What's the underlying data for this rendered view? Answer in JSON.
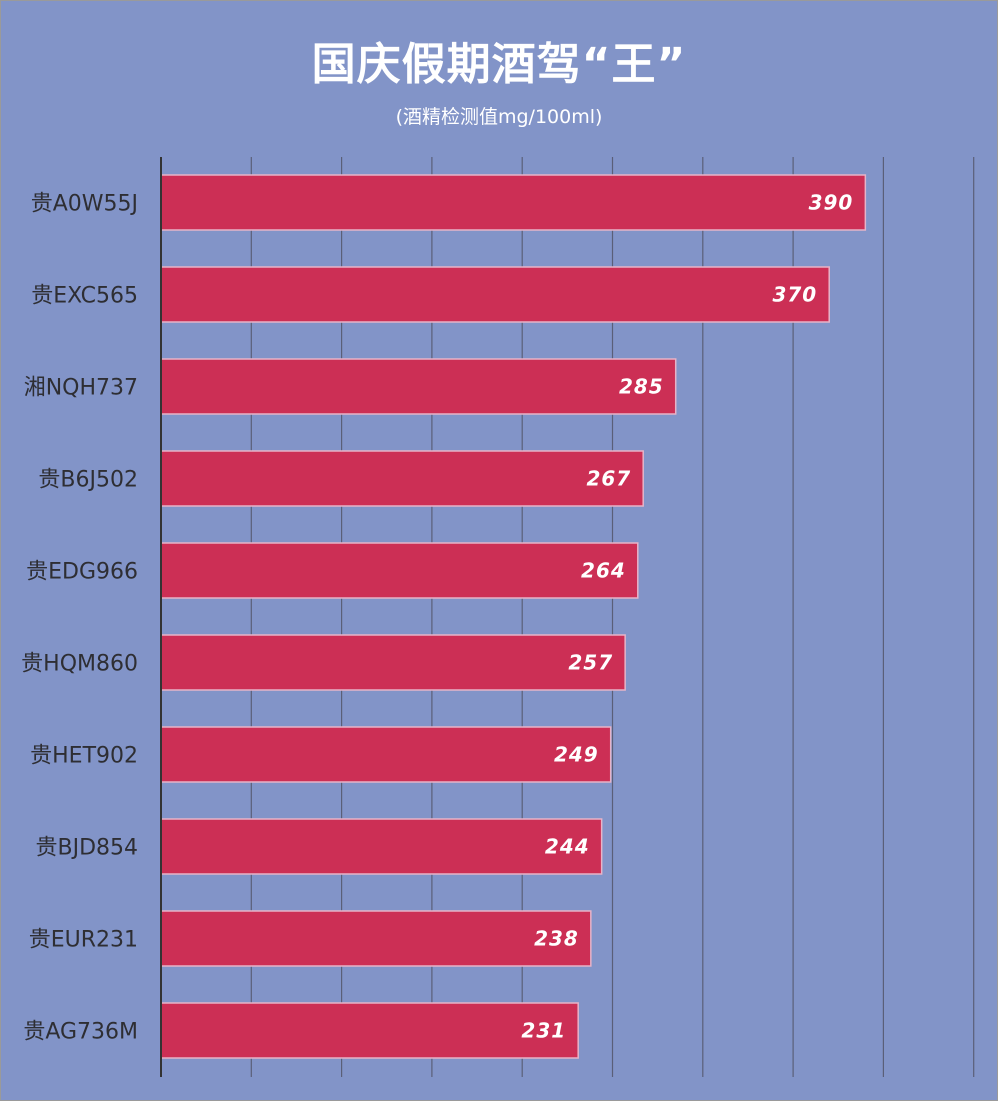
{
  "chart_data": {
    "type": "bar",
    "orientation": "horizontal",
    "title": "国庆假期酒驾“王”",
    "subtitle": "(酒精检测值mg/100ml)",
    "categories": [
      "贵A0W55J",
      "贵EXC565",
      "湘NQH737",
      "贵B6J502",
      "贵EDG966",
      "贵HQM860",
      "贵HET902",
      "贵BJD854",
      "贵EUR231",
      "贵AG736M"
    ],
    "values": [
      390,
      370,
      285,
      267,
      264,
      257,
      249,
      244,
      238,
      231
    ],
    "xlim": [
      0,
      450
    ],
    "x_grid_step": 50,
    "grid": true,
    "legend": "none",
    "colors": {
      "background": "#8294c8",
      "bar": "#cc2f55",
      "bar_border": "#e6b3c8",
      "grid": "#5a5f78",
      "axis": "#333333",
      "value_text": "#ffffff",
      "category_text": "#2e2e33"
    }
  }
}
